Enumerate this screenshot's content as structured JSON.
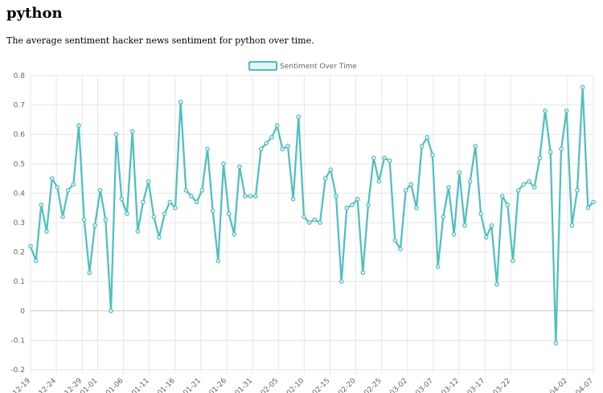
{
  "page": {
    "title": "python",
    "description": "The average sentiment hacker news sentiment for python over time."
  },
  "colors": {
    "line": "#4bc0c0",
    "legend_fill": "#e6f4f4",
    "grid": "#e6e6e6",
    "zero_line": "#c8c8c8",
    "tick_text": "#666666"
  },
  "chart_data": {
    "type": "line",
    "title": "",
    "xlabel": "",
    "ylabel": "",
    "legend": "top-center",
    "grid": true,
    "ylim": [
      -0.2,
      0.8
    ],
    "yticks": [
      -0.2,
      -0.1,
      0,
      0.1,
      0.2,
      0.3,
      0.4,
      0.5,
      0.6,
      0.7,
      0.8
    ],
    "x_start": "2018-12-19",
    "x_end": "2019-04-07",
    "x_tick_labels": [
      "2018-12-19",
      "2018-12-24",
      "2018-12-29",
      "2019-01-01",
      "2019-01-06",
      "2019-01-11",
      "2019-01-16",
      "2019-01-21",
      "2019-01-26",
      "2019-01-31",
      "2019-02-05",
      "2019-02-10",
      "2019-02-15",
      "2019-02-20",
      "2019-02-25",
      "2019-03-02",
      "2019-03-07",
      "2019-03-12",
      "2019-03-17",
      "2019-03-22",
      "2019-04-02",
      "2019-04-07"
    ],
    "series": [
      {
        "name": "Sentiment Over Time",
        "values": [
          0.22,
          0.17,
          0.36,
          0.27,
          0.45,
          0.42,
          0.32,
          0.41,
          0.43,
          0.63,
          0.31,
          0.13,
          0.29,
          0.41,
          0.31,
          0.0,
          0.6,
          0.38,
          0.33,
          0.61,
          0.27,
          0.37,
          0.44,
          0.32,
          0.25,
          0.33,
          0.37,
          0.35,
          0.71,
          0.41,
          0.39,
          0.37,
          0.41,
          0.55,
          0.34,
          0.17,
          0.5,
          0.33,
          0.26,
          0.49,
          0.39,
          0.39,
          0.39,
          0.55,
          0.57,
          0.59,
          0.63,
          0.55,
          0.56,
          0.38,
          0.66,
          0.32,
          0.3,
          0.31,
          0.3,
          0.45,
          0.48,
          0.39,
          0.1,
          0.35,
          0.36,
          0.38,
          0.13,
          0.36,
          0.52,
          0.44,
          0.52,
          0.51,
          0.24,
          0.21,
          0.41,
          0.43,
          0.35,
          0.56,
          0.59,
          0.53,
          0.15,
          0.32,
          0.42,
          0.26,
          0.47,
          0.29,
          0.44,
          0.56,
          0.33,
          0.25,
          0.29,
          0.09,
          0.39,
          0.36,
          0.17,
          0.41,
          0.43,
          0.44,
          0.42,
          0.52,
          0.68,
          0.54,
          -0.11,
          0.55,
          0.68,
          0.29,
          0.41,
          0.76,
          0.35,
          0.37
        ]
      }
    ]
  }
}
